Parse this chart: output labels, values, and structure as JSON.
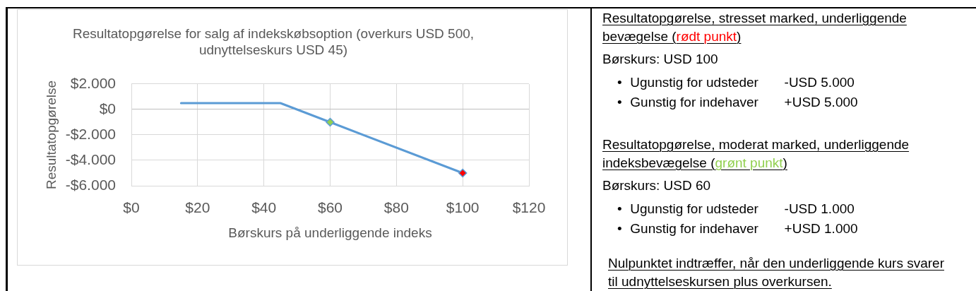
{
  "chart_data": [
    {
      "type": "line",
      "title": "Resultatopgørelse for salg af indekskøbsoption (overkurs USD 500, udnyttelseskurs USD 45)",
      "xlabel": "Børskurs på underliggende indeks",
      "ylabel": "Resultatopgørelse",
      "series": [
        {
          "type": "line",
          "color": "#5b9bd5",
          "marker": "none",
          "x": [
            15,
            45,
            60,
            100
          ],
          "values": [
            500,
            500,
            -1000,
            -5000
          ]
        },
        {
          "type": "scatter",
          "color": "#ff0000",
          "marker": "diamond",
          "x": [
            100
          ],
          "values": [
            -5000
          ]
        },
        {
          "type": "scatter",
          "color": "#92d050",
          "marker": "diamond",
          "x": [
            60
          ],
          "values": [
            -1000
          ]
        }
      ],
      "xlim": [
        0,
        120
      ],
      "xticks": [
        {
          "value": 0,
          "label": "$0"
        },
        {
          "value": 20,
          "label": "$20"
        },
        {
          "value": 40,
          "label": "$40"
        },
        {
          "value": 60,
          "label": "$60"
        },
        {
          "value": 80,
          "label": "$80"
        },
        {
          "value": 100,
          "label": "$100"
        },
        {
          "value": 120,
          "label": "$120"
        }
      ],
      "ylim": [
        -6000,
        2000
      ],
      "yticks": [
        {
          "value": -6000,
          "label": "-$6.000"
        },
        {
          "value": -4000,
          "label": "-$4.000"
        },
        {
          "value": -2000,
          "label": "-$2.000"
        },
        {
          "value": 0,
          "label": "$0"
        },
        {
          "value": 2000,
          "label": "$2.000"
        }
      ],
      "grid": true
    },
    {
      "type": "other",
      "annotations": [
        "Resultatopgørelse, stresset marked, underliggende bevægelse (rødt punkt)",
        "Børskurs: USD 100",
        "•\tUgunstig for udsteder\t-USD 5.000",
        "•\tGunstig for indehaver\t+USD 5.000",
        "Resultatopgørelse, moderat marked, underliggende indeksbevægelse (grønt punkt)",
        "Børskurs: USD 60",
        "•\tUgunstig for udsteder\t-USD 1.000",
        "•\tGunstig for indehaver\t+USD 1.000",
        "Nulpunktet indtræffer, når den underliggende kurs svarer til udnyttelseskursen plus overkursen."
      ]
    }
  ]
}
